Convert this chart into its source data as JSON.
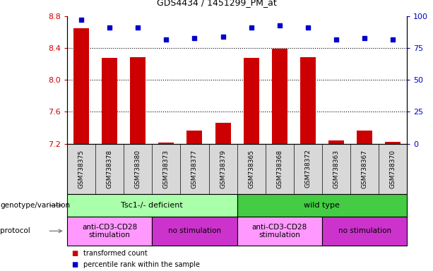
{
  "title": "GDS4434 / 1451299_PM_at",
  "samples": [
    "GSM738375",
    "GSM738378",
    "GSM738380",
    "GSM738373",
    "GSM738377",
    "GSM738379",
    "GSM738365",
    "GSM738368",
    "GSM738372",
    "GSM738363",
    "GSM738367",
    "GSM738370"
  ],
  "red_values": [
    8.65,
    8.28,
    8.29,
    7.21,
    7.36,
    7.46,
    8.28,
    8.39,
    8.29,
    7.24,
    7.36,
    7.22
  ],
  "blue_values": [
    97,
    91,
    91,
    82,
    83,
    84,
    91,
    93,
    91,
    82,
    83,
    82
  ],
  "ylim_left": [
    7.2,
    8.8
  ],
  "ylim_right": [
    0,
    100
  ],
  "yticks_left": [
    7.2,
    7.6,
    8.0,
    8.4,
    8.8
  ],
  "yticks_right": [
    0,
    25,
    50,
    75,
    100
  ],
  "grid_values": [
    7.6,
    8.0,
    8.4
  ],
  "bar_color": "#cc0000",
  "dot_color": "#0000cc",
  "genotype_groups": [
    {
      "label": "Tsc1-/- deficient",
      "start": 0,
      "end": 6,
      "color": "#aaffaa"
    },
    {
      "label": "wild type",
      "start": 6,
      "end": 12,
      "color": "#44cc44"
    }
  ],
  "protocol_groups": [
    {
      "label": "anti-CD3-CD28\nstimulation",
      "start": 0,
      "end": 3,
      "color": "#ff99ff"
    },
    {
      "label": "no stimulation",
      "start": 3,
      "end": 6,
      "color": "#cc33cc"
    },
    {
      "label": "anti-CD3-CD28\nstimulation",
      "start": 6,
      "end": 9,
      "color": "#ff99ff"
    },
    {
      "label": "no stimulation",
      "start": 9,
      "end": 12,
      "color": "#cc33cc"
    }
  ],
  "legend_items": [
    {
      "label": "transformed count",
      "color": "#cc0000"
    },
    {
      "label": "percentile rank within the sample",
      "color": "#0000cc"
    }
  ],
  "left_axis_color": "#cc0000",
  "right_axis_color": "#0000cc",
  "genotype_label": "genotype/variation",
  "protocol_label": "protocol",
  "tick_area_color": "#d8d8d8"
}
